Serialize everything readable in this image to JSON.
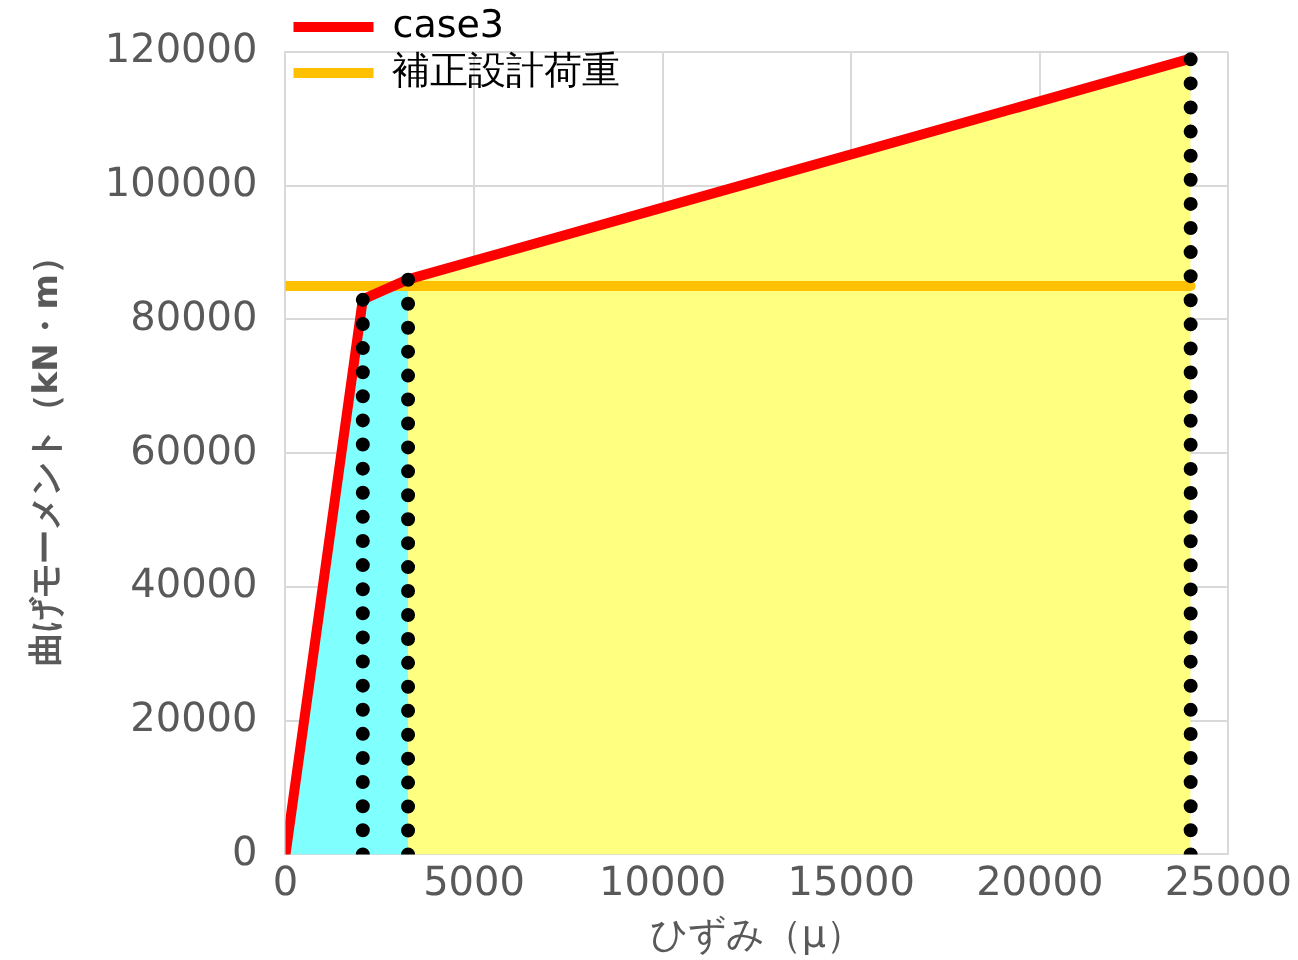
{
  "chart_data": {
    "type": "line",
    "xlabel": "ひずみ（μ）",
    "ylabel": "曲げモーメント（kN・m）",
    "xlim": [
      0,
      25000
    ],
    "xticks": [
      0,
      5000,
      10000,
      15000,
      20000,
      25000
    ],
    "ylim": [
      0,
      120000
    ],
    "yticks": [
      0,
      20000,
      40000,
      60000,
      80000,
      100000,
      120000
    ],
    "grid": true,
    "legend": "top left",
    "marker": "none",
    "series": [
      {
        "type": "area",
        "color": "#80ffff",
        "x": [
          0,
          2050,
          3250
        ],
        "values": [
          0,
          83000,
          86000
        ]
      },
      {
        "type": "area",
        "color": "#ffff80",
        "x": [
          3250,
          24000
        ],
        "values": [
          86000,
          119000
        ]
      },
      {
        "type": "line",
        "name": "補正設計荷重",
        "color": "#ffc000",
        "line_style": "solid",
        "x": [
          0,
          24000
        ],
        "values": [
          85000,
          85000
        ]
      },
      {
        "type": "line",
        "name": "case3",
        "color": "#ff0000",
        "line_style": "solid",
        "x": [
          0,
          2050,
          3250,
          24000
        ],
        "values": [
          0,
          83000,
          86000,
          119000
        ]
      },
      {
        "type": "line",
        "color": "#000000",
        "line_style": "dotted",
        "x": [
          2050,
          2050
        ],
        "values": [
          0,
          83000
        ]
      },
      {
        "type": "line",
        "color": "#000000",
        "line_style": "dotted",
        "x": [
          3250,
          3250
        ],
        "values": [
          0,
          86000
        ]
      },
      {
        "type": "line",
        "color": "#000000",
        "line_style": "dotted",
        "x": [
          24000,
          24000
        ],
        "values": [
          0,
          119000
        ]
      }
    ]
  }
}
